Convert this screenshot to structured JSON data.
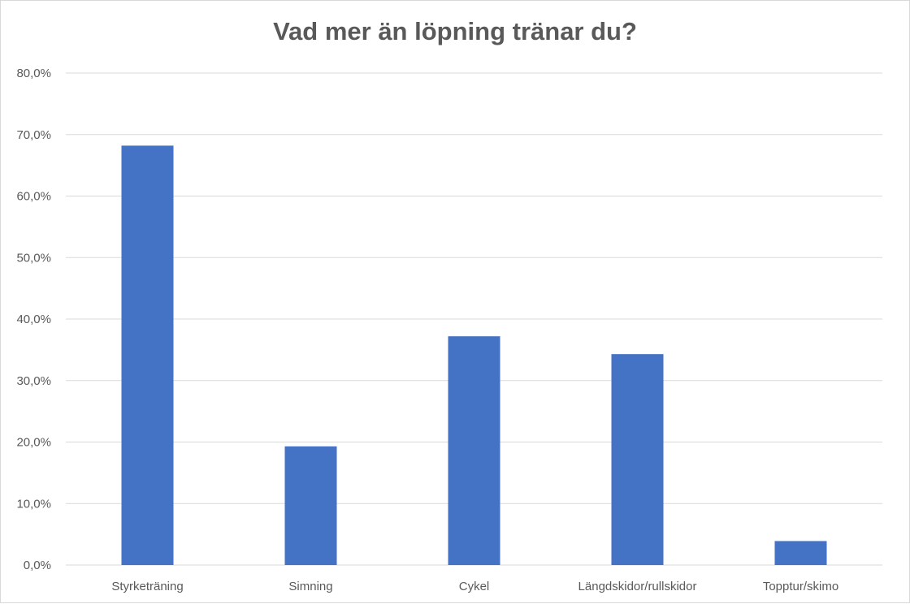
{
  "chart_data": {
    "type": "bar",
    "title": "Vad mer än löpning tränar du?",
    "categories": [
      "Styrketräning",
      "Simning",
      "Cykel",
      "Längdskidor/rullskidor",
      "Topptur/skimo"
    ],
    "values": [
      68.2,
      19.3,
      37.2,
      34.3,
      3.9
    ],
    "ylim": [
      0,
      80
    ],
    "yticks": [
      "0,0%",
      "10,0%",
      "20,0%",
      "30,0%",
      "40,0%",
      "50,0%",
      "60,0%",
      "70,0%",
      "80,0%"
    ],
    "xlabel": "",
    "ylabel": "",
    "grid": true,
    "legend": "none",
    "bar_color": "#4472C4",
    "grid_color": "#d9d9d9"
  }
}
